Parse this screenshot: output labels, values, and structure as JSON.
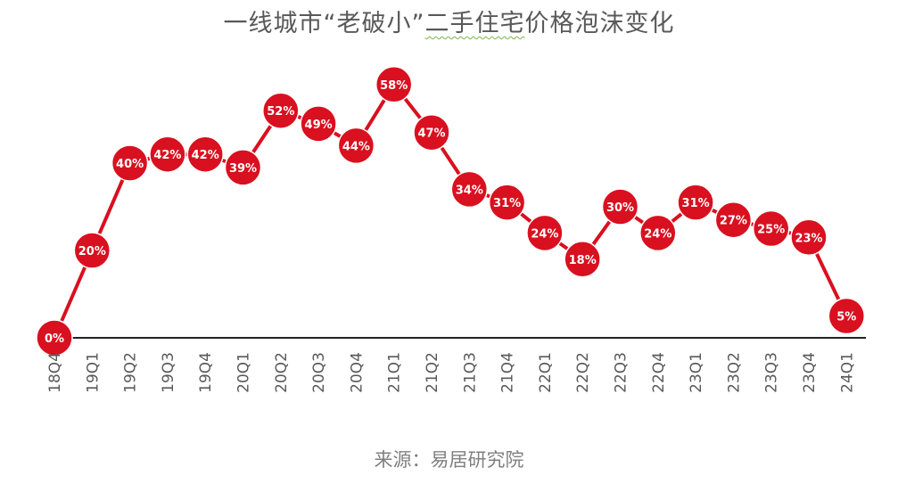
{
  "title": {
    "before": "一线城市“老破小”",
    "underlined": "二手住宅",
    "after": "价格泡沫变化"
  },
  "source": "来源：易居研究院",
  "colors": {
    "series": "#d9101f",
    "axis": "#222222",
    "label": "#595959"
  },
  "chart_data": {
    "type": "line",
    "title": "一线城市“老破小”二手住宅价格泡沫变化",
    "categories": [
      "18Q4",
      "19Q1",
      "19Q2",
      "19Q3",
      "19Q4",
      "20Q1",
      "20Q2",
      "20Q3",
      "20Q4",
      "21Q1",
      "21Q2",
      "21Q3",
      "21Q4",
      "22Q1",
      "22Q2",
      "22Q3",
      "22Q4",
      "23Q1",
      "23Q2",
      "23Q3",
      "23Q4",
      "24Q1"
    ],
    "values": [
      0,
      20,
      40,
      42,
      42,
      39,
      52,
      49,
      44,
      58,
      47,
      34,
      31,
      24,
      18,
      30,
      24,
      31,
      27,
      25,
      23,
      5
    ],
    "data_labels": [
      "0%",
      "20%",
      "40%",
      "42%",
      "42%",
      "39%",
      "52%",
      "49%",
      "44%",
      "58%",
      "47%",
      "34%",
      "31%",
      "24%",
      "18%",
      "30%",
      "24%",
      "31%",
      "27%",
      "25%",
      "23%",
      "5%"
    ],
    "ylim": [
      0,
      60
    ],
    "grid": false,
    "markers": "filled-circle-with-label"
  }
}
